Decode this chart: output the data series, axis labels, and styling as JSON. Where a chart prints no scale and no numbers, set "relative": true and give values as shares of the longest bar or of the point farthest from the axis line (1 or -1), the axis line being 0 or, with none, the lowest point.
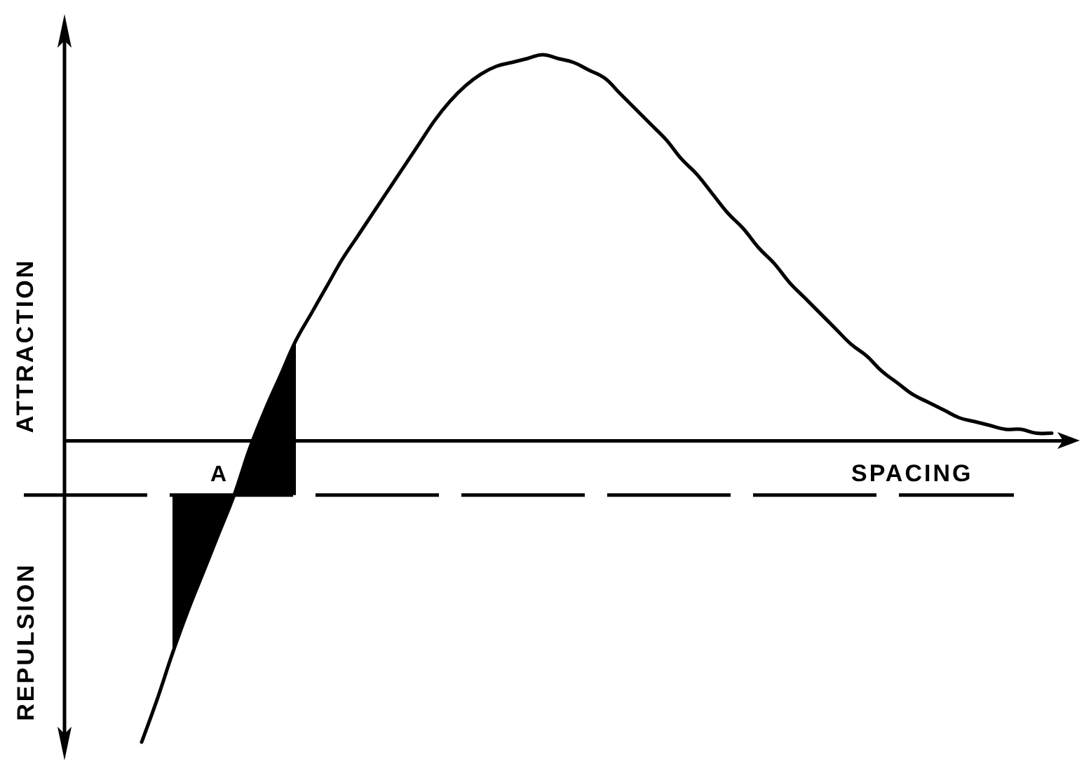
{
  "chart_data": {
    "type": "line",
    "relative": true,
    "xlabel": "SPACING",
    "marker": "none",
    "categories": [
      null,
      null,
      null,
      null,
      null,
      null,
      null,
      null,
      null,
      null,
      null,
      null,
      null,
      null,
      null,
      null,
      null,
      null,
      null,
      null,
      null,
      null,
      null,
      null,
      null,
      null,
      null,
      null,
      null,
      null,
      null,
      null,
      null,
      null,
      null,
      null,
      null,
      null,
      null,
      null,
      null,
      null,
      null,
      null,
      null,
      null,
      null,
      null,
      null,
      null,
      null,
      null,
      null,
      null,
      null,
      null,
      null,
      null,
      null,
      null,
      null,
      null,
      null,
      null,
      null
    ],
    "series": [
      {
        "color": "#000000",
        "values": [
          null,
          null,
          null,
          null,
          null,
          -0.78,
          -0.67,
          -0.55,
          -0.44,
          -0.34,
          -0.24,
          -0.14,
          -0.02,
          0.08,
          0.17,
          0.26,
          0.33,
          0.4,
          0.47,
          0.53,
          0.59,
          0.65,
          0.71,
          0.77,
          0.83,
          0.88,
          0.92,
          0.95,
          0.97,
          0.98,
          0.99,
          1,
          0.99,
          0.98,
          0.96,
          0.94,
          0.9,
          0.86,
          0.82,
          0.78,
          0.73,
          0.69,
          0.64,
          0.59,
          0.55,
          0.5,
          0.46,
          0.41,
          0.37,
          0.33,
          0.29,
          0.25,
          0.22,
          0.18,
          0.15,
          0.12,
          0.1,
          0.08,
          0.06,
          0.05,
          0.04,
          0.03,
          0.03,
          0.02,
          0.02
        ],
        "lower": [
          null,
          null,
          null,
          null,
          null,
          null,
          null,
          -0.55,
          -0.44,
          -0.34,
          -0.24,
          -0.14,
          -0.14,
          -0.14,
          -0.14,
          -0.14,
          null,
          null,
          null,
          null,
          null,
          null,
          null,
          null,
          null,
          null,
          null,
          null,
          null,
          null,
          null,
          null,
          null,
          null,
          null,
          null,
          null,
          null,
          null,
          null,
          null,
          null,
          null,
          null,
          null,
          null,
          null,
          null,
          null,
          null,
          null,
          null,
          null,
          null,
          null,
          null,
          null,
          null,
          null,
          null,
          null,
          null,
          null,
          null,
          null
        ],
        "upper": [
          null,
          null,
          null,
          null,
          null,
          null,
          null,
          -0.14,
          -0.14,
          -0.14,
          -0.14,
          -0.14,
          -0.02,
          0.08,
          0.17,
          0.26,
          null,
          null,
          null,
          null,
          null,
          null,
          null,
          null,
          null,
          null,
          null,
          null,
          null,
          null,
          null,
          null,
          null,
          null,
          null,
          null,
          null,
          null,
          null,
          null,
          null,
          null,
          null,
          null,
          null,
          null,
          null,
          null,
          null,
          null,
          null,
          null,
          null,
          null,
          null,
          null,
          null,
          null,
          null,
          null,
          null,
          null,
          null,
          null,
          null
        ]
      }
    ],
    "ref_lines": [
      {
        "axis": "y",
        "value": -0.14,
        "color": "#000000",
        "line_style": "dashed"
      }
    ],
    "annotations": [
      "ATTRACTION",
      "REPULSION",
      {
        "text": "A",
        "y": -0.14
      }
    ]
  }
}
